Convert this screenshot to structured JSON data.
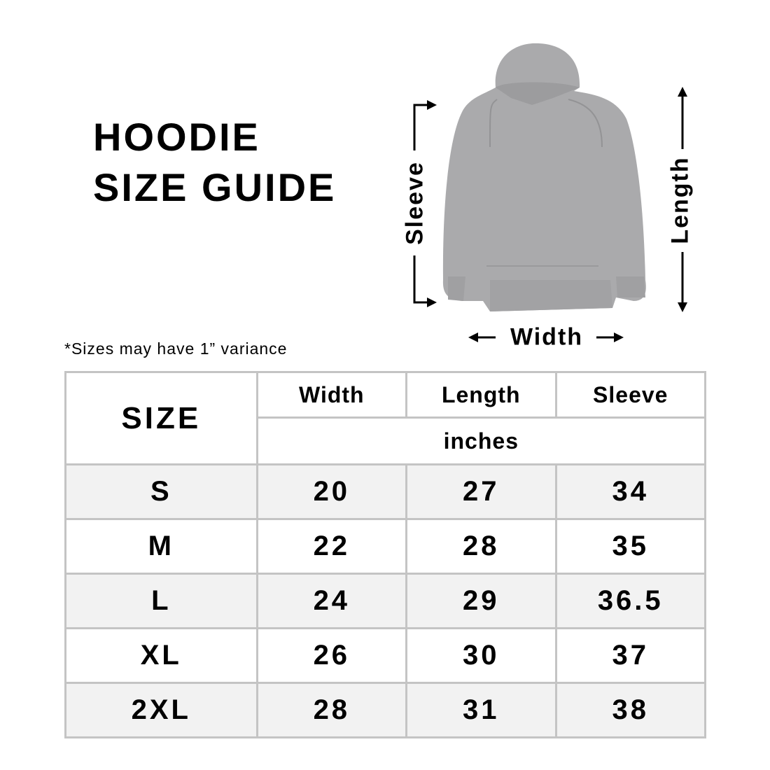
{
  "title": {
    "line1": "HOODIE",
    "line2": "SIZE GUIDE"
  },
  "note": "*Sizes may have 1” variance",
  "diagram": {
    "sleeve_label": "Sleeve",
    "length_label": "Length",
    "width_label": "Width",
    "hoodie_color": "#a9a9ab"
  },
  "table": {
    "size_header": "SIZE",
    "columns": [
      "Width",
      "Length",
      "Sleeve"
    ],
    "unit": "inches",
    "rows": [
      {
        "size": "S",
        "width": "20",
        "length": "27",
        "sleeve": "34"
      },
      {
        "size": "M",
        "width": "22",
        "length": "28",
        "sleeve": "35"
      },
      {
        "size": "L",
        "width": "24",
        "length": "29",
        "sleeve": "36.5"
      },
      {
        "size": "XL",
        "width": "26",
        "length": "30",
        "sleeve": "37"
      },
      {
        "size": "2XL",
        "width": "28",
        "length": "31",
        "sleeve": "38"
      }
    ],
    "border_color": "#c4c4c4",
    "shade_color": "#f2f2f2"
  }
}
